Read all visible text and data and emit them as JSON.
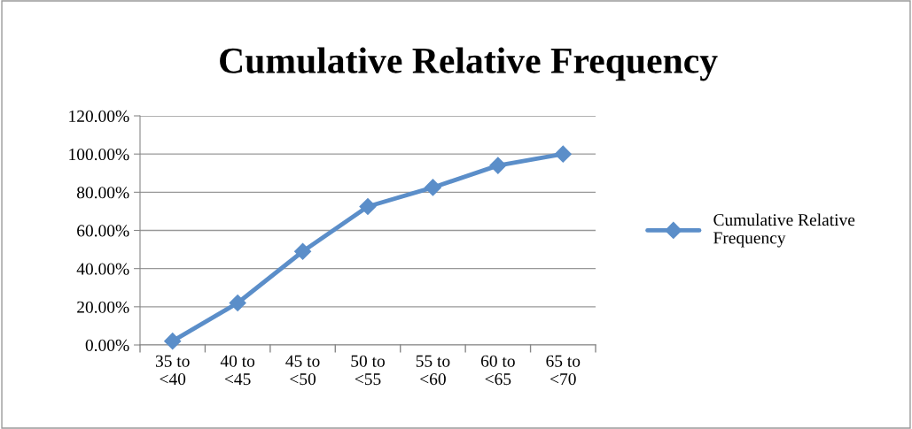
{
  "chart_data": {
    "type": "line",
    "title": "Cumulative Relative Frequency",
    "categories": [
      "35 to <40",
      "40 to <45",
      "45 to <50",
      "50 to <55",
      "55 to <60",
      "60 to <65",
      "65 to <70"
    ],
    "series": [
      {
        "name": "Cumulative Relative Frequency",
        "color": "#5b8ec9",
        "values": [
          2,
          22,
          49,
          72.5,
          82.5,
          94,
          100
        ]
      }
    ],
    "ylim": [
      0,
      120
    ],
    "yticks": [
      {
        "value": 0,
        "label": "0.00%"
      },
      {
        "value": 20,
        "label": "20.00%"
      },
      {
        "value": 40,
        "label": "40.00%"
      },
      {
        "value": 60,
        "label": "60.00%"
      },
      {
        "value": 80,
        "label": "80.00%"
      },
      {
        "value": 100,
        "label": "100.00%"
      },
      {
        "value": 120,
        "label": "120.00%"
      }
    ],
    "grid": "y",
    "legend": "right",
    "marker": "diamond",
    "line_style": "solid"
  }
}
